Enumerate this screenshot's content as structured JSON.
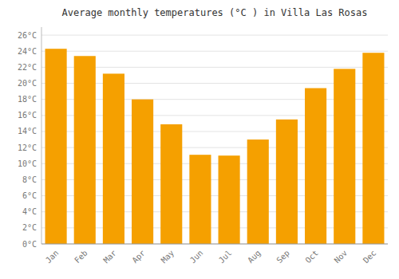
{
  "chart_data": {
    "type": "bar",
    "title": "Average monthly temperatures (°C ) in Villa Las Rosas",
    "categories": [
      "Jan",
      "Feb",
      "Mar",
      "Apr",
      "May",
      "Jun",
      "Jul",
      "Aug",
      "Sep",
      "Oct",
      "Nov",
      "Dec"
    ],
    "values": [
      24.3,
      23.4,
      21.2,
      18.0,
      14.9,
      11.1,
      11.0,
      13.0,
      15.5,
      19.4,
      21.8,
      23.8
    ],
    "color": "#F5A000",
    "ylim": [
      0,
      27
    ],
    "yticks": [
      {
        "value": 0,
        "label": "0°C"
      },
      {
        "value": 2,
        "label": "2°C"
      },
      {
        "value": 4,
        "label": "4°C"
      },
      {
        "value": 6,
        "label": "6°C"
      },
      {
        "value": 8,
        "label": "8°C"
      },
      {
        "value": 10,
        "label": "10°C"
      },
      {
        "value": 12,
        "label": "12°C"
      },
      {
        "value": 14,
        "label": "14°C"
      },
      {
        "value": 16,
        "label": "16°C"
      },
      {
        "value": 18,
        "label": "18°C"
      },
      {
        "value": 20,
        "label": "20°C"
      },
      {
        "value": 22,
        "label": "22°C"
      },
      {
        "value": 24,
        "label": "24°C"
      },
      {
        "value": 26,
        "label": "26°C"
      }
    ],
    "grid": true
  }
}
